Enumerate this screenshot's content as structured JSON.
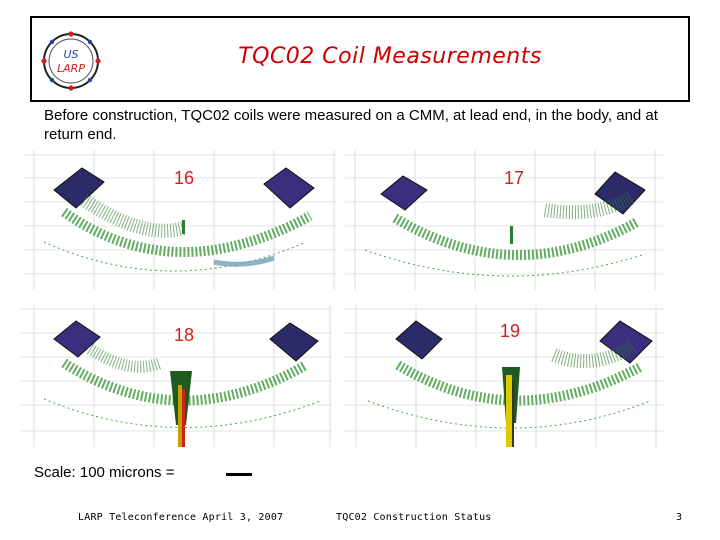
{
  "logo": {
    "line1": "US",
    "line2": "LARP"
  },
  "title": "TQC02 Coil Measurements",
  "intro": "Before construction, TQC02 coils were measured on a CMM, at lead end, in the body, and at return end.",
  "plots": [
    {
      "label": "16"
    },
    {
      "label": "17"
    },
    {
      "label": "18"
    },
    {
      "label": "19"
    }
  ],
  "scale": {
    "text": "Scale:  100 microns ="
  },
  "footer": {
    "left": "LARP Teleconference  April 3, 2007",
    "center": "TQC02 Construction Status",
    "page": "3"
  }
}
